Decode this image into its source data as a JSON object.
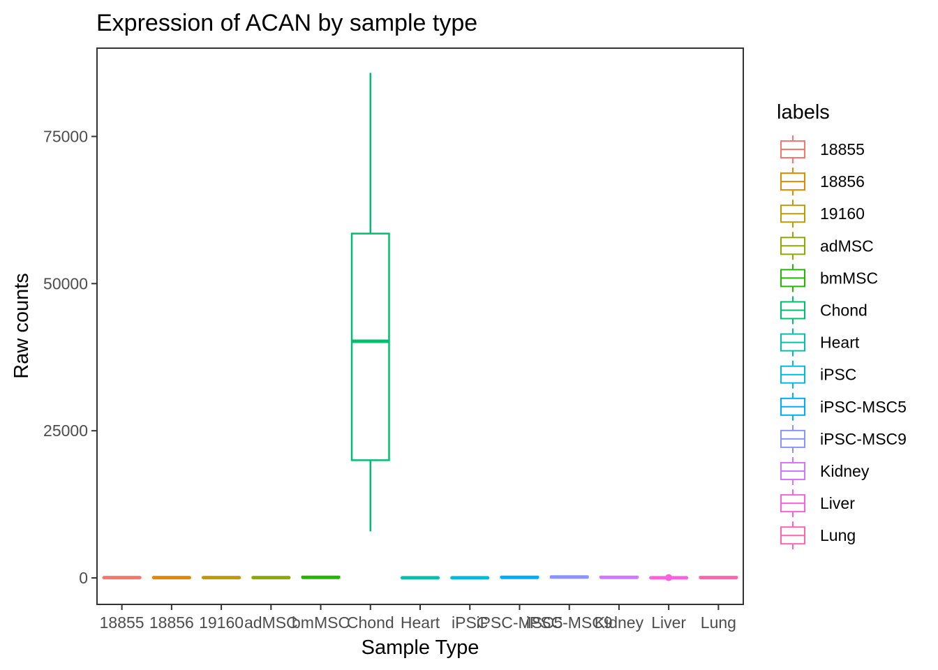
{
  "chart_data": {
    "type": "box",
    "title": "Expression of ACAN by sample type",
    "xlabel": "Sample Type",
    "ylabel": "Raw counts",
    "legend_title": "labels",
    "legend_position": "right",
    "grid": false,
    "ylim": [
      -4500,
      90000
    ],
    "y_ticks": [
      0,
      25000,
      50000,
      75000
    ],
    "y_tick_labels": [
      "0",
      "25000",
      "50000",
      "75000"
    ],
    "categories": [
      "18855",
      "18856",
      "19160",
      "adMSC",
      "bmMSC",
      "Chond",
      "Heart",
      "iPSC",
      "iPSC-MSC5",
      "iPSC-MSC9",
      "Kidney",
      "Liver",
      "Lung"
    ],
    "series": [
      {
        "name": "18855",
        "color": "#F8766D",
        "min": 0,
        "q1": 0,
        "median": 50,
        "q3": 100,
        "max": 150,
        "outliers": []
      },
      {
        "name": "18856",
        "color": "#E18A00",
        "min": 0,
        "q1": 0,
        "median": 50,
        "q3": 100,
        "max": 150,
        "outliers": []
      },
      {
        "name": "19160",
        "color": "#BE9C00",
        "min": 0,
        "q1": 0,
        "median": 50,
        "q3": 100,
        "max": 150,
        "outliers": []
      },
      {
        "name": "adMSC",
        "color": "#8CAB00",
        "min": 0,
        "q1": 0,
        "median": 50,
        "q3": 100,
        "max": 150,
        "outliers": []
      },
      {
        "name": "bmMSC",
        "color": "#24B700",
        "min": 0,
        "q1": 50,
        "median": 100,
        "q3": 200,
        "max": 300,
        "outliers": []
      },
      {
        "name": "Chond",
        "color": "#00BE70",
        "min": 7900,
        "q1": 20000,
        "median": 40200,
        "q3": 58500,
        "max": 85800,
        "outliers": []
      },
      {
        "name": "Heart",
        "color": "#00C1AB",
        "min": 0,
        "q1": 0,
        "median": 20,
        "q3": 50,
        "max": 100,
        "outliers": []
      },
      {
        "name": "iPSC",
        "color": "#00BBDA",
        "min": 0,
        "q1": 0,
        "median": 20,
        "q3": 50,
        "max": 100,
        "outliers": []
      },
      {
        "name": "iPSC-MSC5",
        "color": "#00ACFC",
        "min": 0,
        "q1": 50,
        "median": 100,
        "q3": 200,
        "max": 300,
        "outliers": []
      },
      {
        "name": "iPSC-MSC9",
        "color": "#8B93FF",
        "min": 0,
        "q1": 50,
        "median": 150,
        "q3": 250,
        "max": 350,
        "outliers": []
      },
      {
        "name": "Kidney",
        "color": "#D575FE",
        "min": 0,
        "q1": 50,
        "median": 100,
        "q3": 200,
        "max": 300,
        "outliers": []
      },
      {
        "name": "Liver",
        "color": "#F962DD",
        "min": 0,
        "q1": 0,
        "median": 20,
        "q3": 50,
        "max": 100,
        "outliers": [
          50
        ]
      },
      {
        "name": "Lung",
        "color": "#FF65AC",
        "min": 0,
        "q1": 0,
        "median": 50,
        "q3": 150,
        "max": 250,
        "outliers": []
      }
    ]
  }
}
